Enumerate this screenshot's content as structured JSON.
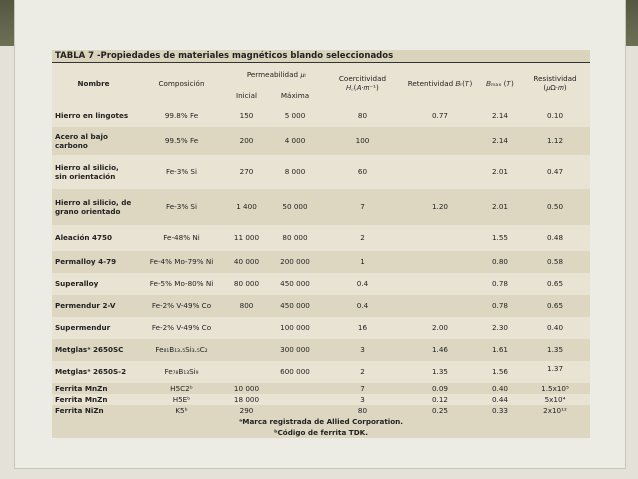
{
  "title": "TABLA 7 -Propiedades de materiales magnéticos blando seleccionados",
  "headers": [
    "Nombre",
    "Composición",
    "Permeabilidad 𝜇ᵣ",
    "Coercitividad 𝐻꜀(𝐴·𝑚⁻¹)",
    "Retentividad 𝐵ᵣ(𝑇)",
    "𝐵ₘₐₓ (𝑇)",
    "Resistividad (𝜇Ω·𝑚)"
  ],
  "subheaders": [
    "Inicial",
    "Máxima"
  ],
  "rows": [
    [
      "Hierro en lingotes",
      "99.8% Fe",
      "150",
      "5 000",
      "80",
      "0.77",
      "2.14",
      "0.10"
    ],
    [
      "Acero al bajo carbono",
      "99.5% Fe",
      "200",
      "4 000",
      "100",
      null,
      "2.14",
      "1.12"
    ],
    [
      "Hierro al silicio, sin orientación",
      "Fe-3% Si",
      "270",
      "8 000",
      "60",
      null,
      "2.01",
      "0.47"
    ],
    [
      "Hierro al silicio, de grano orientado",
      "Fe-3% Si",
      "1 400",
      "50 000",
      "7",
      "1.20",
      "2.01",
      "0.50"
    ],
    [
      "Aleación 4750",
      "Fe-48% Ni",
      "11 000",
      "80 000",
      "2",
      null,
      "1.55",
      "0.48"
    ],
    [
      "Permalloy 4-79",
      "Fe-4% Mo-79% Ni",
      "40 000",
      "200 000",
      "1",
      null,
      "0.80",
      "0.58"
    ],
    [
      "Superalloy",
      "Fe-5% Mo-80% Ni",
      "80 000",
      "450 000",
      "0.4",
      null,
      "0.78",
      "0.65"
    ],
    [
      "Permendur 2-V",
      "Fe-2% V-49% Co",
      "800",
      "450 000",
      "0.4",
      null,
      "0.78",
      "0.65"
    ],
    [
      "Supermendur",
      "Fe-2% V-49% Co",
      null,
      "100 000",
      "16",
      "2.00",
      "2.30",
      "0.40"
    ],
    [
      "Metglasᵃ 2650SC",
      "Fe₈₁B₁₃.₅Si₃.₅C₂",
      null,
      "300 000",
      "3",
      "1.46",
      "1.61",
      "1.35"
    ],
    [
      "Metglasᵃ 2650S-2",
      "Fe₇₈B₁₃Si₉",
      null,
      "600 000",
      "2",
      "1.35",
      "1.56",
      "1.37"
    ],
    [
      "Ferrita MnZn",
      "H5C2ᵇ",
      "10 000",
      null,
      "7",
      "0.09",
      "0.40",
      "1.5x10⁵"
    ],
    [
      "Ferrita MnZn",
      "H5Eᵇ",
      "18 000",
      null,
      "3",
      "0.12",
      "0.44",
      "5x10⁴"
    ],
    [
      "Ferrita NiZn",
      "K5ᵇ",
      "290",
      null,
      "80",
      "0.25",
      "0.33",
      "2x10¹²"
    ]
  ],
  "footnotes": [
    "ᵃMarca registrada de Allied Corporation.",
    "ᵇCódigo de ferrita TDK."
  ]
}
